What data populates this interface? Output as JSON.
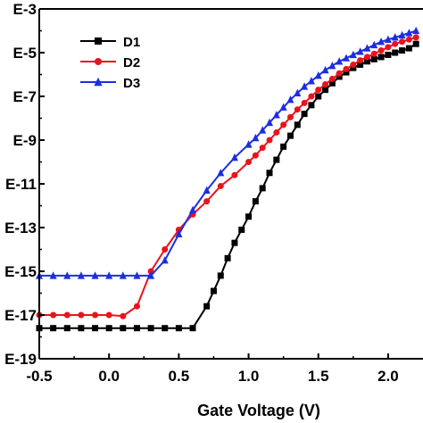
{
  "chart_data": {
    "type": "line",
    "title": "",
    "xlabel": "Gate Voltage (V)",
    "ylabel": "",
    "xlim": [
      -0.5,
      2.25
    ],
    "ylim": [
      -19,
      -3
    ],
    "log_y": true,
    "grid": false,
    "legend_position": "top-left",
    "x_ticks": [
      {
        "value": -0.5,
        "label": "-0.5"
      },
      {
        "value": 0.0,
        "label": "0.0"
      },
      {
        "value": 0.5,
        "label": "0.5"
      },
      {
        "value": 1.0,
        "label": "1.0"
      },
      {
        "value": 1.5,
        "label": "1.5"
      },
      {
        "value": 2.0,
        "label": "2.0"
      }
    ],
    "y_ticks": [
      {
        "value": -3,
        "label": "E-3"
      },
      {
        "value": -5,
        "label": "E-5"
      },
      {
        "value": -7,
        "label": "E-7"
      },
      {
        "value": -9,
        "label": "E-9"
      },
      {
        "value": -11,
        "label": "E-11"
      },
      {
        "value": -13,
        "label": "E-13"
      },
      {
        "value": -15,
        "label": "E-15"
      },
      {
        "value": -17,
        "label": "E-17"
      },
      {
        "value": -19,
        "label": "E-19"
      }
    ],
    "series": [
      {
        "name": "D1",
        "color": "#000000",
        "marker": "square",
        "x": [
          -0.5,
          -0.4,
          -0.3,
          -0.2,
          -0.1,
          0.0,
          0.1,
          0.2,
          0.3,
          0.4,
          0.5,
          0.6,
          0.7,
          0.75,
          0.8,
          0.85,
          0.9,
          0.95,
          1.0,
          1.05,
          1.1,
          1.15,
          1.2,
          1.25,
          1.3,
          1.35,
          1.4,
          1.45,
          1.5,
          1.55,
          1.6,
          1.65,
          1.7,
          1.75,
          1.8,
          1.85,
          1.9,
          1.95,
          2.0,
          2.05,
          2.1,
          2.15,
          2.2
        ],
        "y": [
          -17.6,
          -17.6,
          -17.6,
          -17.6,
          -17.6,
          -17.6,
          -17.6,
          -17.6,
          -17.6,
          -17.6,
          -17.6,
          -17.6,
          -16.6,
          -15.9,
          -15.2,
          -14.4,
          -13.7,
          -13.1,
          -12.5,
          -11.8,
          -11.2,
          -10.5,
          -9.9,
          -9.3,
          -8.8,
          -8.3,
          -7.8,
          -7.4,
          -7.0,
          -6.7,
          -6.4,
          -6.1,
          -5.9,
          -5.7,
          -5.55,
          -5.4,
          -5.3,
          -5.2,
          -5.1,
          -5.0,
          -4.9,
          -4.8,
          -4.6
        ]
      },
      {
        "name": "D2",
        "color": "#e8141b",
        "marker": "circle",
        "x": [
          -0.5,
          -0.4,
          -0.3,
          -0.2,
          -0.1,
          0.0,
          0.1,
          0.2,
          0.3,
          0.4,
          0.5,
          0.6,
          0.7,
          0.8,
          0.9,
          1.0,
          1.05,
          1.1,
          1.15,
          1.2,
          1.25,
          1.3,
          1.35,
          1.4,
          1.45,
          1.5,
          1.55,
          1.6,
          1.65,
          1.7,
          1.75,
          1.8,
          1.85,
          1.9,
          1.95,
          2.0,
          2.05,
          2.1,
          2.15,
          2.2
        ],
        "y": [
          -17.0,
          -17.0,
          -17.0,
          -17.0,
          -17.0,
          -17.0,
          -17.05,
          -16.6,
          -15.0,
          -14.0,
          -13.1,
          -12.4,
          -11.8,
          -11.1,
          -10.6,
          -10.0,
          -9.7,
          -9.35,
          -9.0,
          -8.65,
          -8.3,
          -7.95,
          -7.6,
          -7.3,
          -7.0,
          -6.7,
          -6.45,
          -6.2,
          -5.95,
          -5.75,
          -5.55,
          -5.35,
          -5.2,
          -5.05,
          -4.9,
          -4.75,
          -4.6,
          -4.5,
          -4.4,
          -4.3
        ]
      },
      {
        "name": "D3",
        "color": "#1d2ee0",
        "marker": "triangle",
        "x": [
          -0.5,
          -0.4,
          -0.3,
          -0.2,
          -0.1,
          0.0,
          0.1,
          0.2,
          0.3,
          0.4,
          0.5,
          0.6,
          0.7,
          0.8,
          0.9,
          1.0,
          1.05,
          1.1,
          1.15,
          1.2,
          1.25,
          1.3,
          1.35,
          1.4,
          1.45,
          1.5,
          1.55,
          1.6,
          1.65,
          1.7,
          1.75,
          1.8,
          1.85,
          1.9,
          1.95,
          2.0,
          2.05,
          2.1,
          2.15,
          2.2
        ],
        "y": [
          -15.2,
          -15.2,
          -15.2,
          -15.2,
          -15.2,
          -15.2,
          -15.2,
          -15.2,
          -15.2,
          -14.5,
          -13.3,
          -12.2,
          -11.3,
          -10.5,
          -9.8,
          -9.2,
          -8.9,
          -8.55,
          -8.2,
          -7.85,
          -7.5,
          -7.15,
          -6.85,
          -6.55,
          -6.3,
          -6.05,
          -5.8,
          -5.6,
          -5.4,
          -5.25,
          -5.1,
          -4.95,
          -4.8,
          -4.65,
          -4.5,
          -4.4,
          -4.3,
          -4.2,
          -4.1,
          -4.0
        ]
      }
    ]
  }
}
